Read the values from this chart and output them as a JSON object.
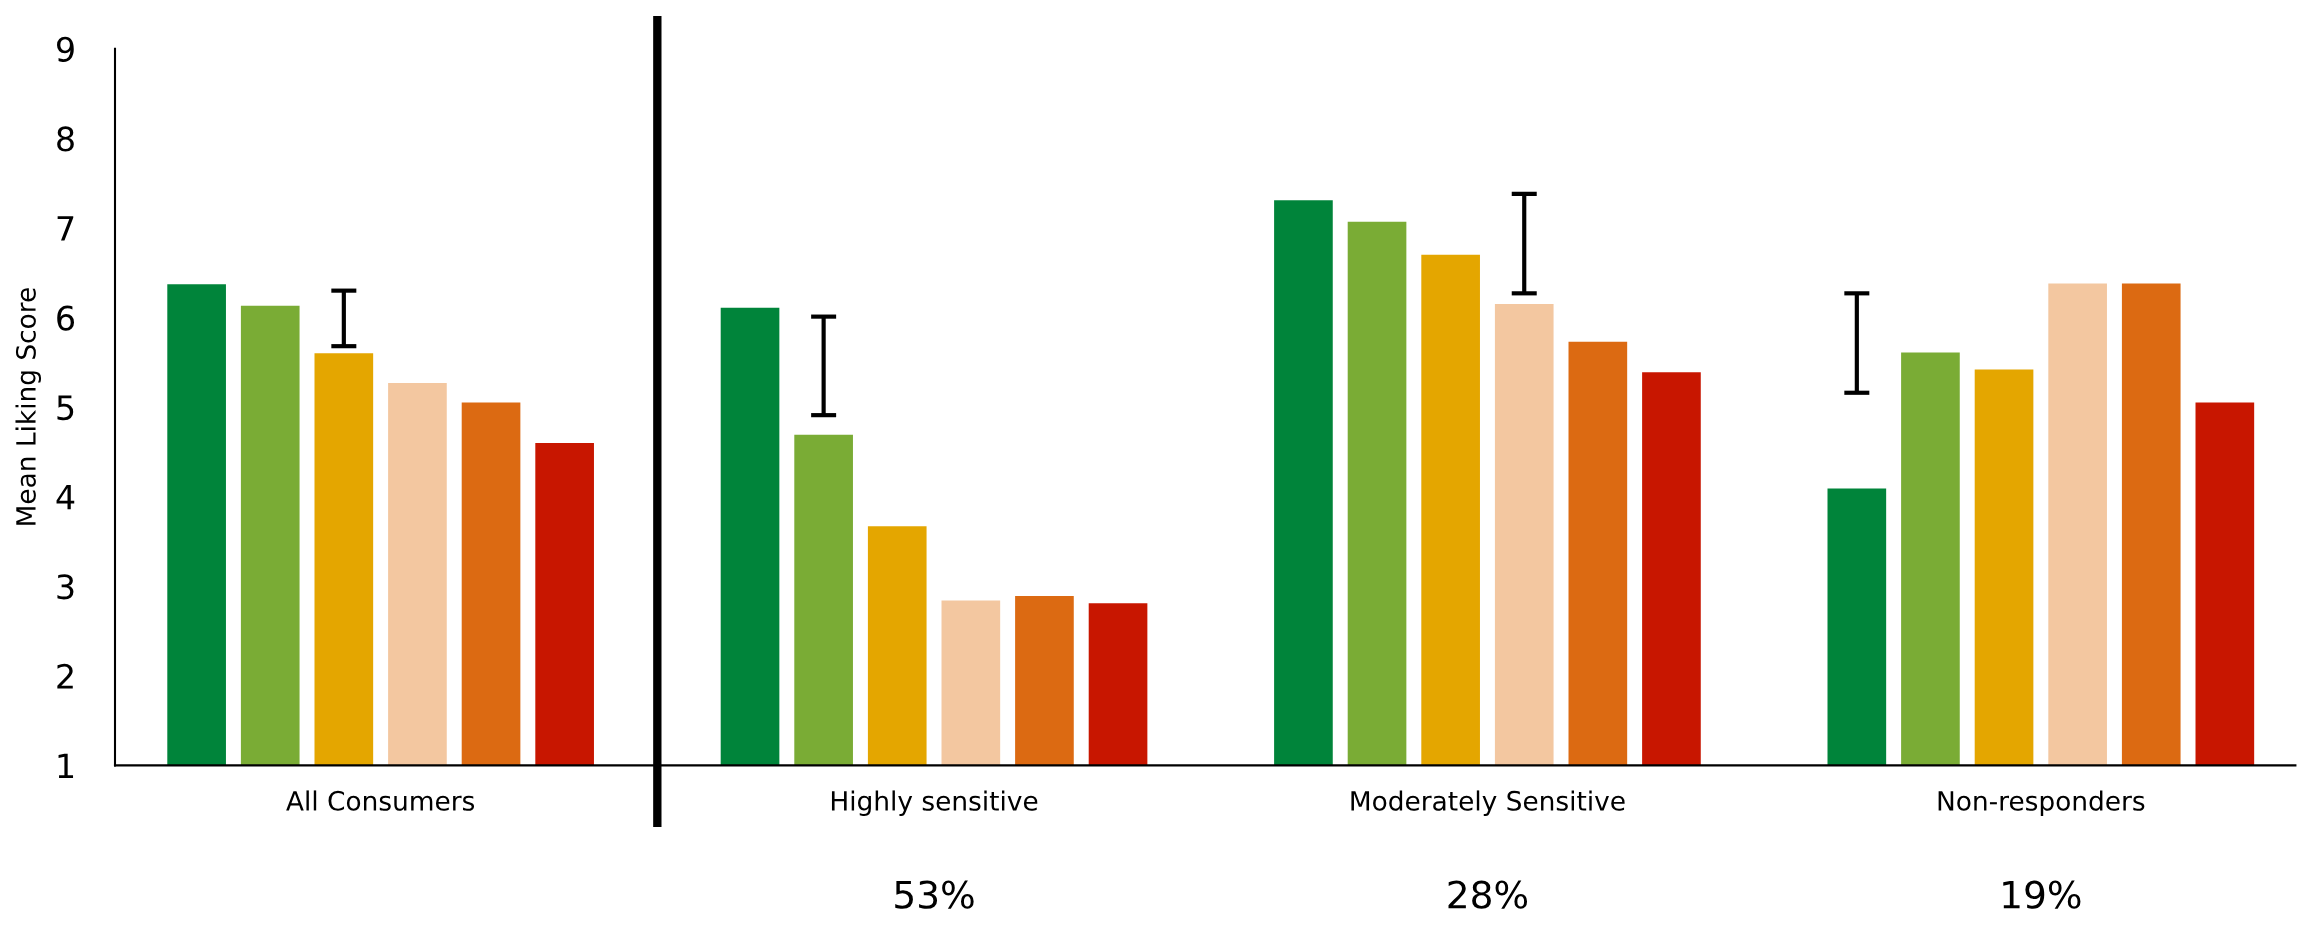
{
  "chart_data": {
    "type": "bar",
    "ylabel": "Mean Liking Score",
    "categories": [
      "All Consumers",
      "Highly sensitive",
      "Moderately Sensitive",
      "Non-responders"
    ],
    "series": [
      {
        "color": "#00843a",
        "values": [
          6.37,
          6.11,
          7.31,
          4.09
        ],
        "errors": [
          null,
          null,
          null,
          [
            5.16,
            6.27
          ]
        ]
      },
      {
        "color": "#7aac35",
        "values": [
          6.13,
          4.69,
          7.07,
          5.61
        ],
        "errors": [
          null,
          [
            4.91,
            6.01
          ],
          null,
          null
        ]
      },
      {
        "color": "#e4a600",
        "values": [
          5.6,
          3.67,
          6.7,
          5.42
        ],
        "errors": [
          [
            5.68,
            6.3
          ],
          null,
          null,
          null
        ]
      },
      {
        "color": "#f3c7a0",
        "values": [
          5.27,
          2.84,
          6.15,
          6.38
        ],
        "errors": [
          null,
          null,
          [
            6.27,
            7.38
          ],
          null
        ]
      },
      {
        "color": "#dc6a12",
        "values": [
          5.05,
          2.89,
          5.73,
          6.38
        ]
      },
      {
        "color": "#c81600",
        "values": [
          4.6,
          2.81,
          5.39,
          5.05
        ]
      }
    ],
    "ylim": [
      1,
      9
    ],
    "yticks": [
      1,
      2,
      3,
      4,
      5,
      6,
      7,
      8,
      9
    ],
    "annotations": [
      "53%",
      "28%",
      "19%"
    ],
    "grid": false
  }
}
